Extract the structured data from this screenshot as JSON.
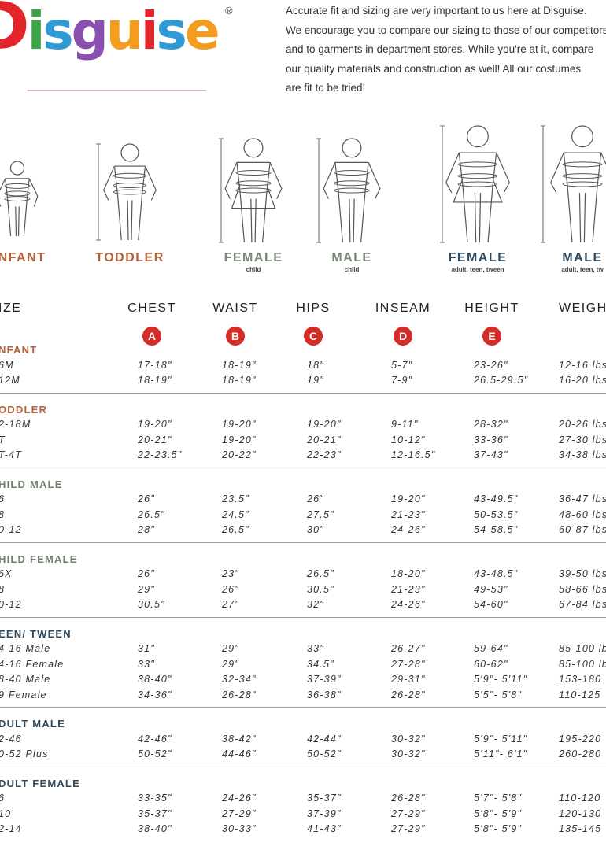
{
  "logo": {
    "text": "Disguise",
    "mark": "®"
  },
  "intro": [
    "Accurate fit and sizing are very important to us here at Disguise.",
    "We encourage you to compare our sizing to those of our competitors",
    "and to garments in department stores. While you're at it, compare",
    "our quality materials and construction as well! All our costumes",
    "are fit to be tried!"
  ],
  "figures": [
    {
      "label": "NFANT"
    },
    {
      "label": "TODDLER"
    },
    {
      "label": "FEMALE",
      "sub": "child"
    },
    {
      "label": "MALE",
      "sub": "child"
    },
    {
      "label": "FEMALE",
      "sub": "adult, teen, tween"
    },
    {
      "label": "MALE",
      "sub": "adult, teen, tw"
    }
  ],
  "table": {
    "columns": [
      {
        "label": "IZE"
      },
      {
        "label": "CHEST",
        "badge": "A"
      },
      {
        "label": "WAIST",
        "badge": "B"
      },
      {
        "label": "HIPS",
        "badge": "C"
      },
      {
        "label": "INSEAM",
        "badge": "D"
      },
      {
        "label": "HEIGHT",
        "badge": "E"
      },
      {
        "label": "WEIGH"
      }
    ],
    "groups": [
      {
        "name": "NFANT",
        "rows": [
          [
            "6M",
            "17-18\"",
            "18-19\"",
            "18\"",
            "5-7\"",
            "23-26\"",
            "12-16 lbs"
          ],
          [
            "12M",
            "18-19\"",
            "18-19\"",
            "19\"",
            "7-9\"",
            "26.5-29.5\"",
            "16-20 lbs"
          ]
        ]
      },
      {
        "name": "ODDLER",
        "rows": [
          [
            "2-18M",
            "19-20\"",
            "19-20\"",
            "19-20\"",
            "9-11\"",
            "28-32\"",
            "20-26 lbs"
          ],
          [
            "T",
            "20-21\"",
            "19-20\"",
            "20-21\"",
            "10-12\"",
            "33-36\"",
            "27-30 lbs"
          ],
          [
            "T-4T",
            "22-23.5\"",
            "20-22\"",
            "22-23\"",
            "12-16.5\"",
            "37-43\"",
            "34-38 lbs"
          ]
        ]
      },
      {
        "name": "HILD MALE",
        "rows": [
          [
            "6",
            "26\"",
            "23.5\"",
            "26\"",
            "19-20\"",
            "43-49.5\"",
            "36-47 lbs"
          ],
          [
            "8",
            "26.5\"",
            "24.5\"",
            "27.5\"",
            "21-23\"",
            "50-53.5\"",
            "48-60 lbs"
          ],
          [
            "0-12",
            "28\"",
            "26.5\"",
            "30\"",
            "24-26\"",
            "54-58.5\"",
            "60-87 lbs"
          ]
        ]
      },
      {
        "name": "HILD FEMALE",
        "rows": [
          [
            "6X",
            "26\"",
            "23\"",
            "26.5\"",
            "18-20\"",
            "43-48.5\"",
            "39-50 lbs"
          ],
          [
            "8",
            "29\"",
            "26\"",
            "30.5\"",
            "21-23\"",
            "49-53\"",
            "58-66 lbs"
          ],
          [
            "0-12",
            "30.5\"",
            "27\"",
            "32\"",
            "24-26\"",
            "54-60\"",
            "67-84 lbs"
          ]
        ]
      },
      {
        "name": "EEN/ TWEEN",
        "rows": [
          [
            "4-16 Male",
            "31\"",
            "29\"",
            "33\"",
            "26-27\"",
            "59-64\"",
            "85-100 lb"
          ],
          [
            "4-16 Female",
            "33\"",
            "29\"",
            "34.5\"",
            "27-28\"",
            "60-62\"",
            "85-100 lb"
          ],
          [
            "8-40 Male",
            "38-40\"",
            "32-34\"",
            "37-39\"",
            "29-31\"",
            "5'9\"- 5'11\"",
            "153-180"
          ],
          [
            "9 Female",
            "34-36\"",
            "26-28\"",
            "36-38\"",
            "26-28\"",
            "5'5\"- 5'8\"",
            "110-125"
          ]
        ]
      },
      {
        "name": "DULT MALE",
        "rows": [
          [
            "2-46",
            "42-46\"",
            "38-42\"",
            "42-44\"",
            "30-32\"",
            "5'9\"- 5'11\"",
            "195-220"
          ],
          [
            "0-52 Plus",
            "50-52\"",
            "44-46\"",
            "50-52\"",
            "30-32\"",
            "5'11\"- 6'1\"",
            "260-280"
          ]
        ]
      },
      {
        "name": "DULT FEMALE",
        "rows": [
          [
            "6",
            "33-35\"",
            "24-26\"",
            "35-37\"",
            "26-28\"",
            "5'7\"- 5'8\"",
            "110-120"
          ],
          [
            "10",
            "35-37\"",
            "27-29\"",
            "37-39\"",
            "27-29\"",
            "5'8\"- 5'9\"",
            "120-130"
          ],
          [
            "2-14",
            "38-40\"",
            "30-33\"",
            "41-43\"",
            "27-29\"",
            "5'8\"- 5'9\"",
            "135-145"
          ]
        ]
      }
    ]
  }
}
